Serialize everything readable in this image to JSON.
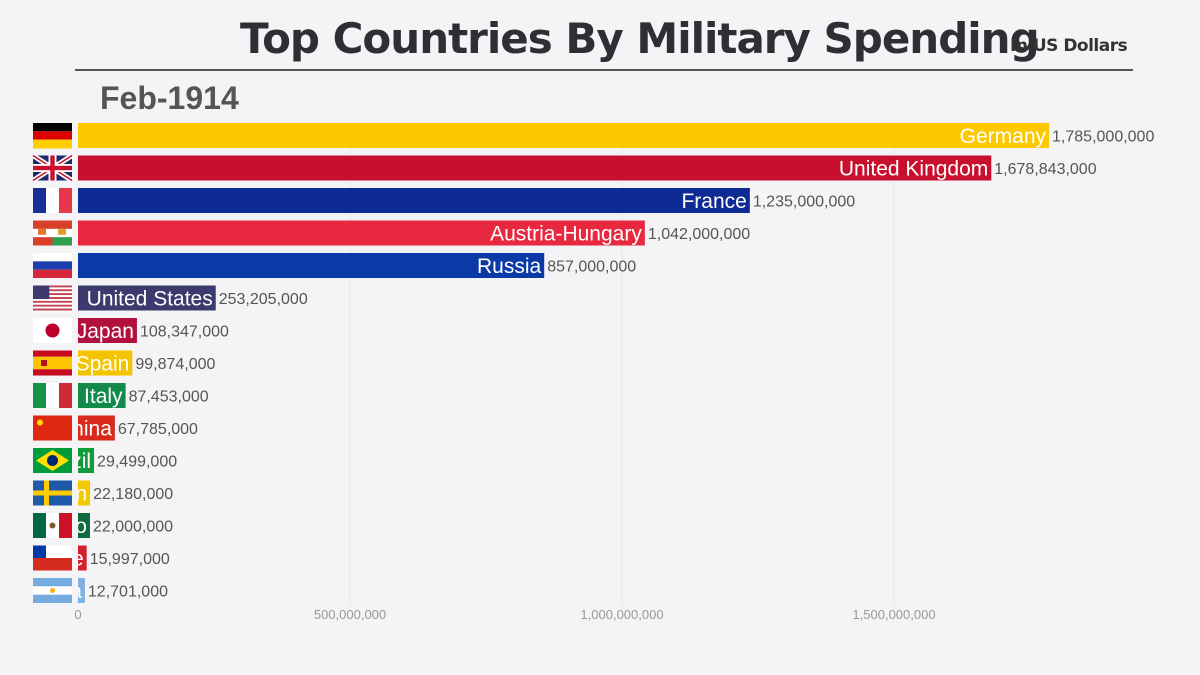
{
  "header": {
    "title": "Top Countries By Military Spending",
    "subtitle": "In US Dollars",
    "date": "Feb-1914"
  },
  "chart_data": {
    "type": "bar",
    "orientation": "horizontal",
    "title": "Top Countries By Military Spending",
    "subtitle": "In US Dollars",
    "period": "Feb-1914",
    "xlabel": "",
    "ylabel": "",
    "xlim": [
      0,
      1800000000
    ],
    "x_ticks": [
      0,
      500000000,
      1000000000,
      1500000000
    ],
    "x_tick_labels": [
      "0",
      "500,000,000",
      "1,000,000,000",
      "1,500,000,000"
    ],
    "grid": true,
    "legend": "none",
    "categories": [
      "Germany",
      "United Kingdom",
      "France",
      "Austria-Hungary",
      "Russia",
      "United States",
      "Japan",
      "Spain",
      "Italy",
      "China",
      "Brazil",
      "Sweden",
      "Mexico",
      "Chile",
      "Argentina"
    ],
    "values": [
      1785000000,
      1678843000,
      1235000000,
      1042000000,
      857000000,
      253205000,
      108347000,
      99874000,
      87453000,
      67785000,
      29499000,
      22180000,
      22000000,
      15997000,
      12701000
    ],
    "value_labels": [
      "1,785,000,000",
      "1,678,843,000",
      "1,235,000,000",
      "1,042,000,000",
      "857,000,000",
      "253,205,000",
      "108,347,000",
      "99,874,000",
      "87,453,000",
      "67,785,000",
      "29,499,000",
      "22,180,000",
      "22,000,000",
      "15,997,000",
      "12,701,000"
    ],
    "colors": [
      "#fcc800",
      "#c8102e",
      "#0e2a94",
      "#e8283f",
      "#0b3aa6",
      "#3b3b6d",
      "#b0123d",
      "#f5c400",
      "#128a4c",
      "#d92a1c",
      "#129b3a",
      "#f3c900",
      "#0f6b3e",
      "#d3202e",
      "#7fb1e2"
    ],
    "flags": [
      "germany-flag",
      "uk-flag",
      "france-flag",
      "austria-hungary-flag",
      "russia-flag",
      "usa-flag",
      "japan-flag",
      "spain-flag",
      "italy-flag",
      "china-flag",
      "brazil-flag",
      "sweden-flag",
      "mexico-flag",
      "chile-flag",
      "argentina-flag"
    ]
  }
}
